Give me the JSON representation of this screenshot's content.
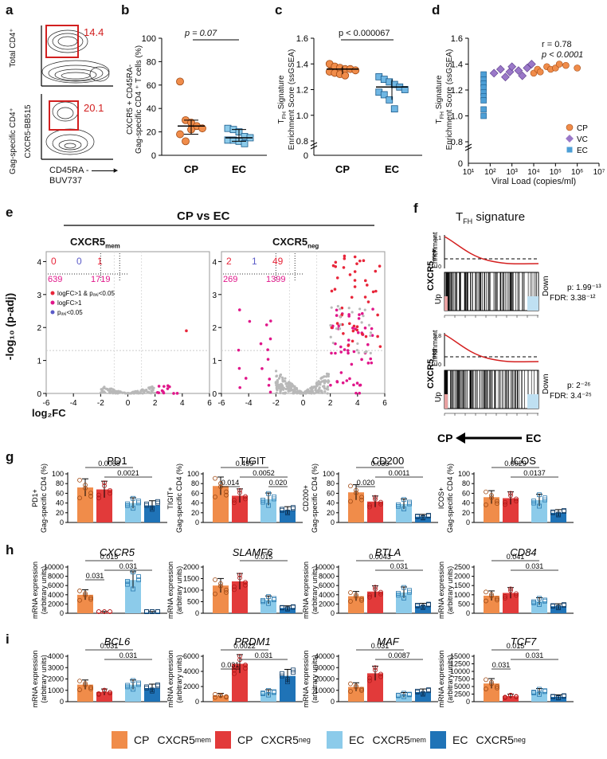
{
  "colors": {
    "cp_mem": "#F08C4A",
    "cp_neg": "#E23A3A",
    "ec_mem": "#8CCBEA",
    "ec_neg": "#1F73B7",
    "magenta": "#E0168A",
    "grey": "#B8B8B8",
    "red_line": "#D41F1F"
  },
  "panel_letters": {
    "a": "a",
    "b": "b",
    "c": "c",
    "d": "d",
    "e": "e",
    "f": "f",
    "g": "g",
    "h": "h",
    "i": "i"
  },
  "panel_a": {
    "top_ylabel": "Total CD4⁺",
    "bottom_ylabel": "Gag-specific CD4⁺",
    "gate_top": "14.4",
    "gate_bottom": "20.1",
    "y_marker": "CXCR5-BB515",
    "x_marker": "CD45RA -",
    "x_marker2": "BUV737"
  },
  "panel_b": {
    "ylabel": "CXCR5 + CD45RA-\nGag-specific CD4 ⁺ T cells (%)",
    "p_label": "p = 0.07",
    "yticks": [
      "0",
      "20",
      "40",
      "60",
      "80",
      "100"
    ],
    "groups": [
      "CP",
      "EC"
    ]
  },
  "panel_c": {
    "ylabel": "Signature\nEnrichment Score (ssGSEA)",
    "ylabel_sub": "T",
    "ylabel_sub2": "FH",
    "p_label": "p < 0.000067",
    "yticks": [
      "0",
      "0.8",
      "1.0",
      "1.2",
      "1.4",
      "1.6"
    ],
    "groups": [
      "CP",
      "EC"
    ]
  },
  "panel_d": {
    "ylabel": "Signature\nEnrichment Score (ssGSEA)",
    "r_label": "r   = 0.78",
    "p_label": "p < 0.0001",
    "xlabel": "Viral Load (copies/ml)",
    "yticks": [
      "0",
      "0.8",
      "1.0",
      "1.2",
      "1.4",
      "1.6"
    ],
    "xticks": [
      "10¹",
      "10²",
      "10³",
      "10⁴",
      "10⁵",
      "10⁶",
      "10⁷"
    ],
    "legend": [
      "CP",
      "VC",
      "EC"
    ]
  },
  "panel_e": {
    "title": "CP vs EC",
    "left_title": "CXCR5",
    "left_sub": "mem",
    "right_title": "CXCR5",
    "right_sub": "neg",
    "ylabel": "-log₁₀ (p-adj)",
    "xlabel": "log₂FC",
    "xticks": [
      "-6",
      "-4",
      "-2",
      "0",
      "2",
      "4",
      "6"
    ],
    "yticks": [
      "0",
      "1",
      "2",
      "3",
      "4"
    ],
    "left_counts": {
      "tl": "0",
      "tm": "0",
      "tr": "1",
      "bl": "639",
      "br": "1719"
    },
    "right_counts": {
      "tl": "2",
      "tm": "1",
      "tr": "49",
      "bl": "269",
      "br": "1399"
    },
    "legend": [
      "logFC>1 & pₐₓⱼ<0.05",
      "logFC>1",
      "pₐₓⱼ<0.05"
    ]
  },
  "panel_f": {
    "title": "T",
    "title_sub": "FH",
    "title_rest": " signature",
    "top_label": "CXCR5",
    "top_sub": "mem",
    "bottom_label": "CXCR5",
    "bottom_sub": "neg",
    "enrich": "Enrichment",
    "up": "Up",
    "down": "Down",
    "top_ymax": "3.1",
    "top_ymin": "0",
    "bottom_ymax": "3.8",
    "bottom_ymin": "0",
    "top_p": "p:  1.99⁻¹³",
    "top_fdr": "FDR:  3.38⁻¹²",
    "bottom_p": "p:  2⁻²⁶",
    "bottom_fdr": "FDR:  3.4⁻²⁵",
    "arrow_left": "CP",
    "arrow_right": "EC"
  },
  "panel_g": [
    {
      "title": "PD1",
      "ylabel": "PD1+\nGag-specific CD4 (%)",
      "yticks": [
        "0",
        "20",
        "40",
        "60",
        "80",
        "100"
      ],
      "sig": [
        {
          "label": "0.0068"
        },
        {
          "label": "0.0021"
        }
      ],
      "bars": [
        72,
        68,
        40,
        35
      ]
    },
    {
      "title": "TIGIT",
      "ylabel": "TIGIT+\nGag-specific CD4 (%)",
      "yticks": [
        "0",
        "20",
        "40",
        "60",
        "80",
        "100"
      ],
      "sig": [
        {
          "label": "0.499"
        },
        {
          "label": "0.0052"
        },
        {
          "label": "0.014"
        },
        {
          "label": "0.020"
        }
      ],
      "bars": [
        75,
        55,
        48,
        25
      ]
    },
    {
      "title": "CD200",
      "ylabel": "CD200+\nGag-specific CD4 (%)",
      "yticks": [
        "0",
        "20",
        "40",
        "60",
        "80",
        "100"
      ],
      "sig": [
        {
          "label": "0.036"
        },
        {
          "label": "0.0011"
        },
        {
          "label": "0.020"
        }
      ],
      "bars": [
        62,
        43,
        38,
        12
      ]
    },
    {
      "title": "ICOS",
      "ylabel": "ICOS+\nGag-specific CD4 (%)",
      "yticks": [
        "0",
        "20",
        "40",
        "60",
        "80",
        "100"
      ],
      "sig": [
        {
          "label": "0.0029"
        },
        {
          "label": "0.0137"
        }
      ],
      "bars": [
        52,
        50,
        46,
        20
      ]
    }
  ],
  "panel_h": [
    {
      "title": "CXCR5",
      "ylabel": "mRNA expression\n(arbitrary units)",
      "yticks": [
        "0",
        "2000",
        "4000",
        "6000",
        "8000",
        "10000"
      ],
      "sig": [
        {
          "label": "0.015"
        },
        {
          "label": "0.031"
        },
        {
          "label": "0.031"
        }
      ],
      "bars": [
        4000,
        150,
        7200,
        150
      ]
    },
    {
      "title": "SLAMF6",
      "ylabel": "mRNA expression\n(arbitrary units)",
      "yticks": [
        "0",
        "500",
        "1000",
        "1500",
        "2000"
      ],
      "sig": [
        {
          "label": "0.015"
        }
      ],
      "bars": [
        1200,
        1380,
        580,
        230
      ]
    },
    {
      "title": "BTLA",
      "ylabel": "mRNA expression\n(arbitrary units)",
      "yticks": [
        "0",
        "2000",
        "4000",
        "6000",
        "8000",
        "10000"
      ],
      "sig": [
        {
          "label": "0.0043"
        },
        {
          "label": "0.031"
        }
      ],
      "bars": [
        3700,
        4700,
        4500,
        1600
      ]
    },
    {
      "title": "CD84",
      "ylabel": "mRNA expression\n(arbitrary units)",
      "yticks": [
        "0",
        "500",
        "1000",
        "1500",
        "2000",
        "2500"
      ],
      "sig": [
        {
          "label": "0.041"
        },
        {
          "label": "0.031"
        }
      ],
      "bars": [
        950,
        1100,
        650,
        380
      ]
    }
  ],
  "panel_i": [
    {
      "title": "BCL6",
      "ylabel": "mRNA expression\n(arbitrary units)",
      "yticks": [
        "0",
        "1000",
        "2000",
        "3000",
        "4000"
      ],
      "sig": [
        {
          "label": "0.031"
        },
        {
          "label": "0.031"
        }
      ],
      "bars": [
        1500,
        850,
        1500,
        1200
      ]
    },
    {
      "title": "PRDM1",
      "ylabel": "mRNA expression\n(arbitrary units)",
      "yticks": [
        "0",
        "2000",
        "4000",
        "6000"
      ],
      "sig": [
        {
          "label": "0.0022"
        },
        {
          "label": "0.031"
        },
        {
          "label": "0.031"
        }
      ],
      "bars": [
        800,
        5000,
        1200,
        3400
      ]
    },
    {
      "title": "MAF",
      "ylabel": "mRNA expression\n(arbitrary units)",
      "yticks": [
        "0",
        "10000",
        "20000",
        "30000",
        "40000"
      ],
      "sig": [
        {
          "label": "0.031"
        },
        {
          "label": "0.0087"
        }
      ],
      "bars": [
        13000,
        25000,
        6000,
        8500
      ]
    },
    {
      "title": "TCF7",
      "ylabel": "mRNA expression\n(arbitrary units)",
      "yticks": [
        "0",
        "2500",
        "5000",
        "7500",
        "10000",
        "12500",
        "15000"
      ],
      "sig": [
        {
          "label": "0.015"
        },
        {
          "label": "0.031"
        },
        {
          "label": "0.031"
        }
      ],
      "bars": [
        6000,
        1800,
        3300,
        1600
      ]
    }
  ],
  "legend": [
    {
      "group": "CP",
      "marker": "CXCR5",
      "sub": "mem",
      "color": "#F08C4A"
    },
    {
      "group": "CP",
      "marker": "CXCR5",
      "sub": "neg",
      "color": "#E23A3A"
    },
    {
      "group": "EC",
      "marker": "CXCR5",
      "sub": "mem",
      "color": "#8CCBEA"
    },
    {
      "group": "EC",
      "marker": "CXCR5",
      "sub": "neg",
      "color": "#1F73B7"
    }
  ],
  "chart_data": [
    {
      "type": "scatter",
      "title": "b",
      "ylabel": "CXCR5 + CD45RA- Gag-specific CD4 T cells (%)",
      "categories": [
        "CP",
        "EC"
      ],
      "series": [
        {
          "name": "CP",
          "values": [
            63,
            30,
            28,
            25,
            23,
            18,
            12,
            22
          ]
        },
        {
          "name": "EC",
          "values": [
            23,
            22,
            20,
            16,
            15,
            13,
            13,
            12,
            10
          ]
        }
      ],
      "ylim": [
        0,
        100
      ]
    },
    {
      "type": "scatter",
      "title": "c",
      "ylabel": "TFH Signature Enrichment Score (ssGSEA)",
      "categories": [
        "CP",
        "EC"
      ],
      "series": [
        {
          "name": "CP",
          "values": [
            1.4,
            1.38,
            1.37,
            1.36,
            1.36,
            1.35,
            1.34,
            1.33,
            1.32,
            1.31
          ]
        },
        {
          "name": "EC",
          "values": [
            1.3,
            1.28,
            1.26,
            1.24,
            1.22,
            1.2,
            1.18,
            1.16,
            1.12,
            1.05
          ]
        }
      ],
      "ylim": [
        0,
        1.6
      ]
    },
    {
      "type": "scatter",
      "title": "d",
      "xlabel": "Viral Load (copies/ml)",
      "ylabel": "TFH Signature Enrichment Score (ssGSEA)",
      "series": [
        {
          "name": "EC",
          "x": [
            50,
            50,
            50,
            50,
            50,
            50,
            50,
            50,
            50
          ],
          "y": [
            1.32,
            1.28,
            1.25,
            1.22,
            1.18,
            1.15,
            1.12,
            1.05,
            1.0
          ]
        },
        {
          "name": "VC",
          "x": [
            150,
            300,
            500,
            800,
            1000,
            2000,
            3000,
            5000,
            8000
          ],
          "y": [
            1.33,
            1.36,
            1.3,
            1.34,
            1.38,
            1.35,
            1.31,
            1.37,
            1.4
          ]
        },
        {
          "name": "CP",
          "x": [
            10000,
            15000,
            20000,
            40000,
            60000,
            100000,
            150000,
            300000,
            1000000
          ],
          "y": [
            1.33,
            1.36,
            1.34,
            1.38,
            1.36,
            1.37,
            1.4,
            1.39,
            1.37
          ]
        }
      ],
      "r": 0.78
    }
  ]
}
